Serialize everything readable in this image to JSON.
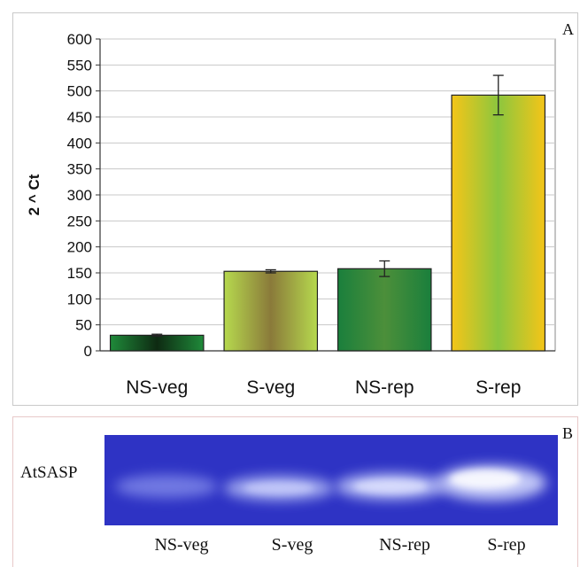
{
  "panel_a": {
    "letter": "A"
  },
  "panel_b": {
    "letter": "B",
    "gel_label": "AtSASP",
    "lanes": [
      "NS-veg",
      "S-veg",
      "NS-rep",
      "S-rep"
    ]
  },
  "chart_data": {
    "type": "bar",
    "categories": [
      "NS-veg",
      "S-veg",
      "NS-rep",
      "S-rep"
    ],
    "values": [
      30,
      153,
      158,
      492
    ],
    "errors": [
      2,
      3,
      15,
      38
    ],
    "title": "",
    "xlabel": "",
    "ylabel": "2 ^ Ct",
    "ylim": [
      0,
      600
    ],
    "yticks": [
      0,
      50,
      100,
      150,
      200,
      250,
      300,
      350,
      400,
      450,
      500,
      550,
      600
    ],
    "grid": true,
    "legend": "none"
  }
}
